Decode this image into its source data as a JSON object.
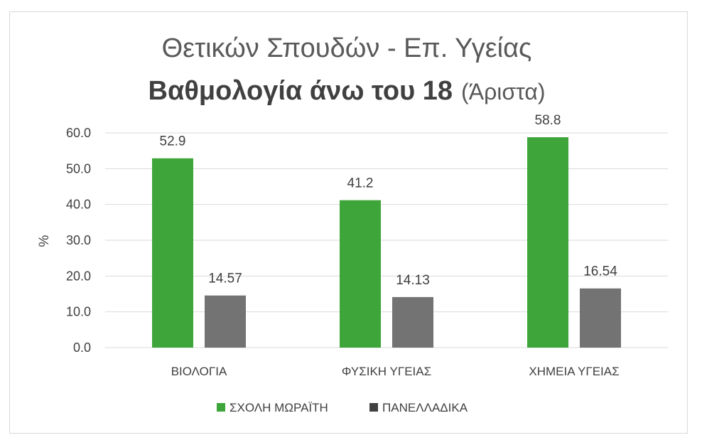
{
  "chart_data": {
    "type": "bar",
    "title_line1": "Θετικών Σπουδών - Επ. Υγείας",
    "title_line2_bold": "Βαθμολογία άνω του 18",
    "title_line2_rest": "(Άριστα)",
    "ylabel": "%",
    "xlabel": "",
    "ylim": [
      0,
      60
    ],
    "yticks": [
      "0.0",
      "10.0",
      "20.0",
      "30.0",
      "40.0",
      "50.0",
      "60.0"
    ],
    "categories": [
      "ΒΙΟΛΟΓΙΑ",
      "ΦΥΣΙΚΗ ΥΓΕΙΑΣ",
      "ΧΗΜΕΙΑ ΥΓΕΙΑΣ"
    ],
    "series": [
      {
        "name": "ΣΧΟΛΗ ΜΩΡΑΪΤΗ",
        "values": [
          52.9,
          41.2,
          58.8
        ],
        "labels": [
          "52.9",
          "41.2",
          "58.8"
        ],
        "color": "#3ea53a"
      },
      {
        "name": "ΠΑΝΕΛΛΑΔΙΚΑ",
        "values": [
          14.57,
          14.13,
          16.54
        ],
        "labels": [
          "14.57",
          "14.13",
          "16.54"
        ],
        "color": "#737373"
      }
    ],
    "legend_swatches": [
      "#3ea53a",
      "#404040"
    ],
    "grid": true,
    "legend_position": "bottom"
  }
}
